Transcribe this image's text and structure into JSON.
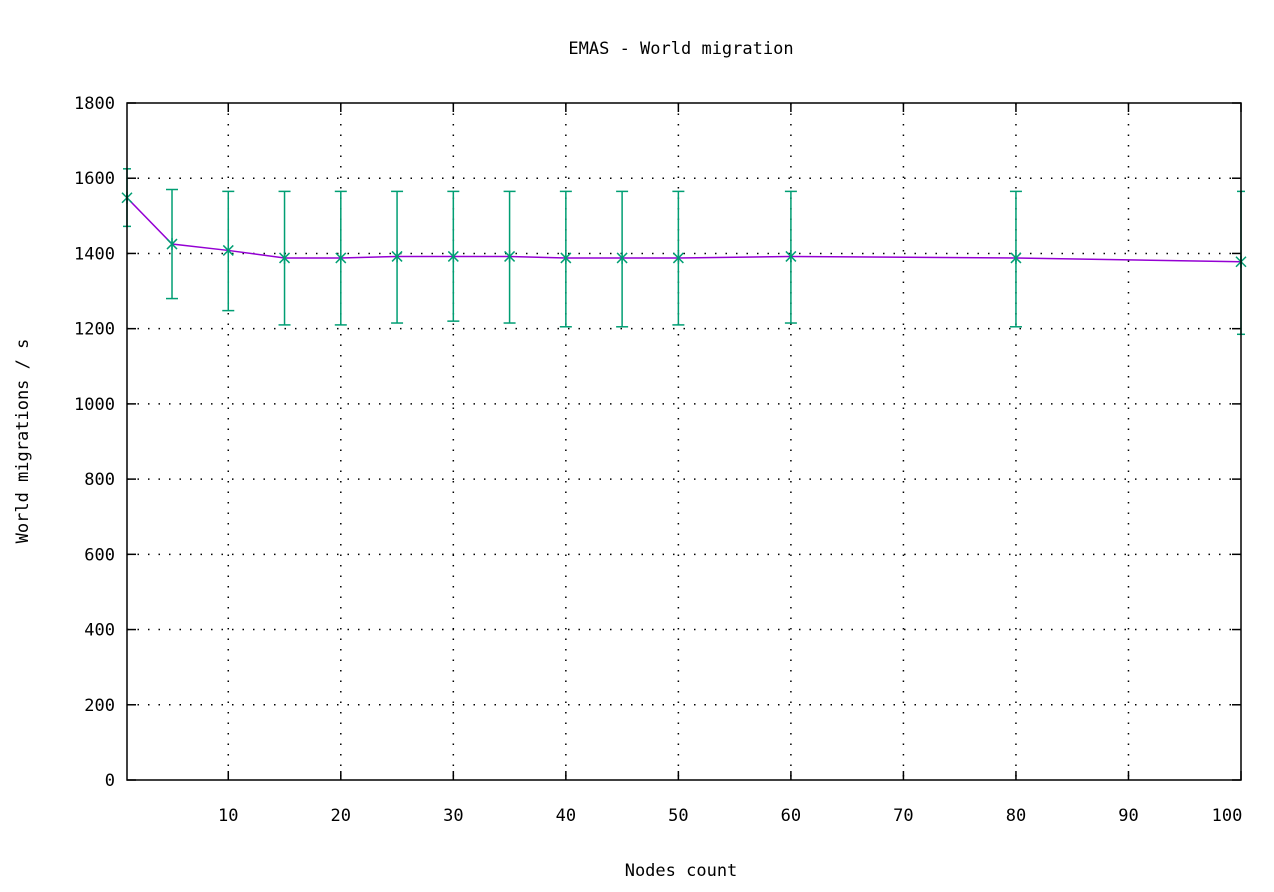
{
  "chart_data": {
    "type": "line",
    "title": "EMAS - World migration",
    "xlabel": "Nodes count",
    "ylabel": "World migrations / s",
    "xlim": [
      1,
      100
    ],
    "ylim": [
      0,
      1800
    ],
    "xticks": [
      10,
      20,
      30,
      40,
      50,
      60,
      70,
      80,
      90,
      100
    ],
    "yticks": [
      0,
      200,
      400,
      600,
      800,
      1000,
      1200,
      1400,
      1600,
      1800
    ],
    "grid": true,
    "series": [
      {
        "line_color": "#9400d3",
        "point_color": "#009e73",
        "x": [
          1,
          5,
          10,
          15,
          20,
          25,
          30,
          35,
          40,
          45,
          50,
          60,
          80,
          100
        ],
        "y": [
          1548,
          1425,
          1408,
          1388,
          1388,
          1392,
          1392,
          1392,
          1388,
          1388,
          1388,
          1392,
          1388,
          1378
        ],
        "error_low": [
          1472,
          1280,
          1248,
          1210,
          1210,
          1215,
          1220,
          1215,
          1205,
          1205,
          1210,
          1215,
          1205,
          1185
        ],
        "error_high": [
          1625,
          1570,
          1565,
          1565,
          1565,
          1565,
          1565,
          1565,
          1565,
          1565,
          1565,
          1565,
          1565,
          1565
        ]
      }
    ]
  }
}
